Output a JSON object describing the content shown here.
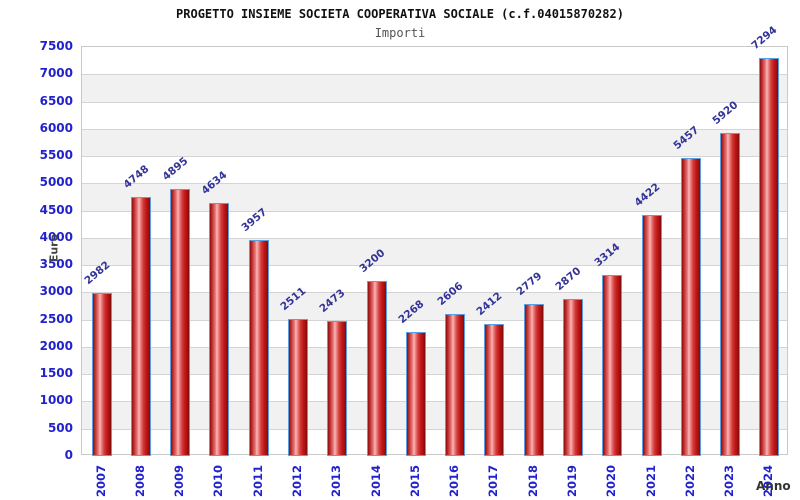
{
  "chart_data": {
    "type": "bar",
    "title": "PROGETTO INSIEME SOCIETA COOPERATIVA SOCIALE (c.f.04015870282)",
    "subtitle": "Importi",
    "xlabel": "Anno",
    "ylabel": "Euro",
    "categories": [
      "2007",
      "2008",
      "2009",
      "2010",
      "2011",
      "2012",
      "2013",
      "2014",
      "2015",
      "2016",
      "2017",
      "2018",
      "2019",
      "2020",
      "2021",
      "2022",
      "2023",
      "2024"
    ],
    "values": [
      2982,
      4748,
      4895,
      4634,
      3957,
      2511,
      2473,
      3200,
      2268,
      2606,
      2412,
      2779,
      2870,
      3314,
      4422,
      5457,
      5920,
      7294
    ],
    "ylim": [
      0,
      7500
    ],
    "ytick_step": 500,
    "legend": "none",
    "grid": "horizontal gridlines every 500 with alternating white/gray bands",
    "data_labels": "above bars, rotated diagonally",
    "colors": {
      "tick_label": "#2222cc",
      "value_label": "#333399",
      "bar_border": "#5b9fe0",
      "bar_fill_dark": "#8f0d0d",
      "bar_fill_light": "#f8b6b6",
      "band_gray": "#f1f1f1",
      "gridline": "#d4d4d4",
      "plot_border": "#c9c9c9",
      "title_color": "#111111",
      "subtitle_color": "#555555",
      "axis_title_color": "#444444",
      "background": "#ffffff"
    }
  }
}
